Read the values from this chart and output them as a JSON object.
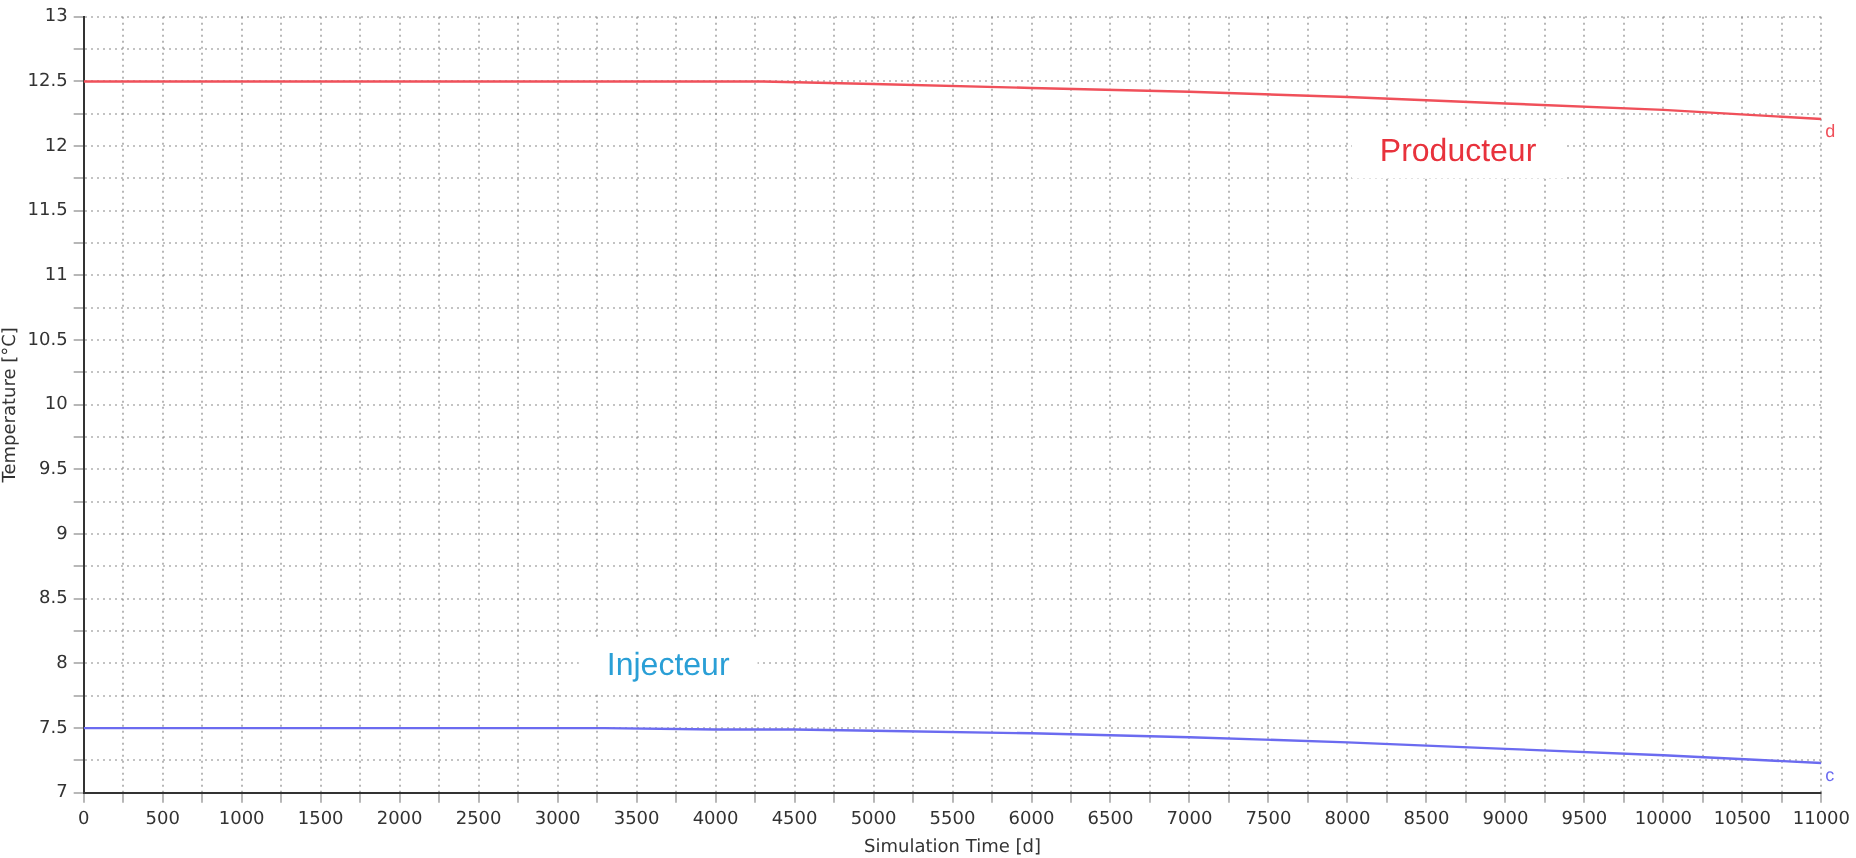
{
  "chart_data": {
    "type": "line",
    "xlabel": "Simulation Time [d]",
    "ylabel": "Temperature [°C]",
    "series": [
      {
        "name": "Producteur",
        "color": "#f0505a",
        "x": [
          0,
          1000,
          2000,
          3000,
          4000,
          4300,
          5000,
          6000,
          7000,
          8000,
          9000,
          10000,
          11000
        ],
        "values": [
          12.5,
          12.5,
          12.5,
          12.5,
          12.5,
          12.5,
          12.48,
          12.45,
          12.42,
          12.38,
          12.33,
          12.28,
          12.21
        ]
      },
      {
        "name": "Injecteur",
        "color": "#6b6bf0",
        "x": [
          0,
          1000,
          2000,
          3000,
          3300,
          4000,
          4500,
          5000,
          6000,
          7000,
          8000,
          9000,
          10000,
          11000
        ],
        "values": [
          7.5,
          7.5,
          7.5,
          7.5,
          7.5,
          7.49,
          7.49,
          7.48,
          7.46,
          7.43,
          7.39,
          7.34,
          7.29,
          7.23
        ]
      }
    ],
    "annotations": [
      "d",
      "c"
    ],
    "xlim": [
      0,
      11000
    ],
    "xticks": [
      0,
      {
        "value": 250,
        "label": null
      },
      500,
      {
        "value": 750,
        "label": null
      },
      1000,
      {
        "value": 1250,
        "label": null
      },
      1500,
      {
        "value": 1750,
        "label": null
      },
      2000,
      {
        "value": 2250,
        "label": null
      },
      2500,
      {
        "value": 2750,
        "label": null
      },
      3000,
      {
        "value": 3250,
        "label": null
      },
      3500,
      {
        "value": 3750,
        "label": null
      },
      4000,
      {
        "value": 4250,
        "label": null
      },
      4500,
      {
        "value": 4750,
        "label": null
      },
      5000,
      {
        "value": 5250,
        "label": null
      },
      5500,
      {
        "value": 5750,
        "label": null
      },
      6000,
      {
        "value": 6250,
        "label": null
      },
      6500,
      {
        "value": 6750,
        "label": null
      },
      7000,
      {
        "value": 7250,
        "label": null
      },
      7500,
      {
        "value": 7750,
        "label": null
      },
      8000,
      {
        "value": 8250,
        "label": null
      },
      8500,
      {
        "value": 8750,
        "label": null
      },
      9000,
      {
        "value": 9250,
        "label": null
      },
      9500,
      {
        "value": 9750,
        "label": null
      },
      10000,
      {
        "value": 10250,
        "label": null
      },
      10500,
      {
        "value": 10750,
        "label": null
      },
      11000
    ],
    "ylim": [
      7,
      13
    ],
    "yticks": [
      7,
      {
        "value": 7.25,
        "label": null
      },
      7.5,
      {
        "value": 7.75,
        "label": null
      },
      8,
      {
        "value": 8.25,
        "label": null
      },
      8.5,
      {
        "value": 8.75,
        "label": null
      },
      9,
      {
        "value": 9.25,
        "label": null
      },
      9.5,
      {
        "value": 9.75,
        "label": null
      },
      10,
      {
        "value": 10.25,
        "label": null
      },
      10.5,
      {
        "value": 10.75,
        "label": null
      },
      11,
      {
        "value": 11.25,
        "label": null
      },
      11.5,
      {
        "value": 11.75,
        "label": null
      },
      12,
      {
        "value": 12.25,
        "label": null
      },
      12.5,
      {
        "value": 12.75,
        "label": null
      },
      13
    ],
    "grid": true,
    "legend": false,
    "marker": "none",
    "line_style": "solid"
  }
}
